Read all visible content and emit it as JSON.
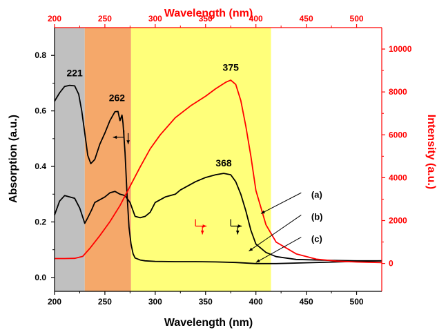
{
  "chart_data": {
    "type": "line",
    "xlabel_bottom": "Wavelength (nm)",
    "xlabel_top": "Wavelength (nm)",
    "ylabel_left": "Absorption (a.u.)",
    "ylabel_right": "Intensity (a.u.)",
    "xlim": [
      200,
      525
    ],
    "ylim_left": [
      -0.05,
      0.9
    ],
    "ylim_right": [
      -1300,
      11000
    ],
    "x_ticks": [
      200,
      250,
      300,
      350,
      400,
      450,
      500
    ],
    "x_tick_labels": [
      "200",
      "250",
      "300",
      "350",
      "400",
      "450",
      "500"
    ],
    "y_left_ticks": [
      0.0,
      0.2,
      0.4,
      0.6,
      0.8
    ],
    "y_left_tick_labels": [
      "0.0",
      "0.2",
      "0.4",
      "0.6",
      "0.8"
    ],
    "y_right_ticks": [
      0,
      2000,
      4000,
      6000,
      8000,
      10000
    ],
    "y_right_tick_labels": [
      "0",
      "2000",
      "4000",
      "6000",
      "8000",
      "10000"
    ],
    "regions": [
      {
        "from": 200,
        "to": 230,
        "color": "#c0c0c0"
      },
      {
        "from": 230,
        "to": 276,
        "color": "#f5a86a"
      },
      {
        "from": 276,
        "to": 415,
        "color": "#ffff7a"
      }
    ],
    "series": [
      {
        "axis": "left",
        "color": "#000000",
        "x": [
          200,
          205,
          210,
          215,
          220,
          224,
          227,
          230,
          233,
          236,
          240,
          245,
          250,
          255,
          260,
          263,
          265,
          267,
          268,
          270,
          272,
          274,
          276,
          278,
          280,
          285,
          290,
          300,
          320,
          340,
          360,
          380,
          400,
          420,
          450,
          500,
          525
        ],
        "y": [
          0.635,
          0.665,
          0.688,
          0.692,
          0.69,
          0.66,
          0.6,
          0.52,
          0.44,
          0.41,
          0.425,
          0.48,
          0.52,
          0.565,
          0.597,
          0.598,
          0.565,
          0.585,
          0.555,
          0.45,
          0.3,
          0.18,
          0.12,
          0.085,
          0.07,
          0.063,
          0.06,
          0.058,
          0.057,
          0.057,
          0.056,
          0.054,
          0.05,
          0.05,
          0.053,
          0.058,
          0.06
        ]
      },
      {
        "axis": "left",
        "color": "#000000",
        "x": [
          200,
          205,
          210,
          215,
          220,
          225,
          230,
          233,
          237,
          240,
          245,
          250,
          255,
          260,
          265,
          270,
          275,
          280,
          285,
          290,
          295,
          300,
          310,
          320,
          325,
          330,
          340,
          350,
          360,
          368,
          375,
          380,
          385,
          390,
          395,
          400,
          410,
          420,
          440,
          470,
          500,
          525
        ],
        "y": [
          0.225,
          0.275,
          0.295,
          0.29,
          0.285,
          0.25,
          0.195,
          0.215,
          0.245,
          0.27,
          0.28,
          0.29,
          0.305,
          0.31,
          0.3,
          0.295,
          0.27,
          0.22,
          0.215,
          0.22,
          0.235,
          0.27,
          0.29,
          0.3,
          0.315,
          0.325,
          0.345,
          0.36,
          0.37,
          0.375,
          0.37,
          0.345,
          0.3,
          0.24,
          0.17,
          0.12,
          0.09,
          0.075,
          0.065,
          0.062,
          0.06,
          0.06
        ]
      },
      {
        "axis": "right",
        "color": "#ff0000",
        "x": [
          200,
          210,
          220,
          228,
          235,
          245,
          255,
          265,
          275,
          285,
          295,
          305,
          320,
          335,
          350,
          360,
          370,
          375,
          380,
          385,
          390,
          395,
          400,
          410,
          420,
          440,
          460,
          480,
          500,
          525
        ],
        "y": [
          230,
          230,
          240,
          330,
          700,
          1300,
          1950,
          2700,
          3600,
          4500,
          5350,
          6000,
          6800,
          7350,
          7800,
          8150,
          8450,
          8550,
          8350,
          7600,
          6400,
          5000,
          3400,
          1800,
          1000,
          450,
          200,
          110,
          70,
          40
        ]
      }
    ],
    "peak_labels": [
      {
        "text": "221",
        "x": 220,
        "y": 0.725
      },
      {
        "text": "262",
        "x": 262,
        "y": 0.635
      },
      {
        "text": "368",
        "x": 368,
        "y": 0.4
      },
      {
        "text": "375",
        "x": 375,
        "y": 0.745
      }
    ],
    "curve_labels": [
      {
        "text": "(a)",
        "x": 455,
        "y": 0.3
      },
      {
        "text": "(b)",
        "x": 455,
        "y": 0.22
      },
      {
        "text": "(c)",
        "x": 455,
        "y": 0.14
      }
    ],
    "curve_pointers": [
      {
        "x1": 445,
        "y1": 0.305,
        "x2": 405,
        "y2": 0.23
      },
      {
        "x1": 445,
        "y1": 0.225,
        "x2": 393,
        "y2": 0.095
      },
      {
        "x1": 445,
        "y1": 0.145,
        "x2": 400,
        "y2": 0.054
      }
    ],
    "axis_pointers": [
      {
        "x": 269,
        "y": 0.505,
        "to": "left",
        "color": "#000000"
      },
      {
        "x": 340,
        "y": 0.185,
        "to": "right",
        "color": "#ff0000"
      },
      {
        "x": 375,
        "y": 0.185,
        "to": "right",
        "color": "#000000"
      }
    ]
  }
}
